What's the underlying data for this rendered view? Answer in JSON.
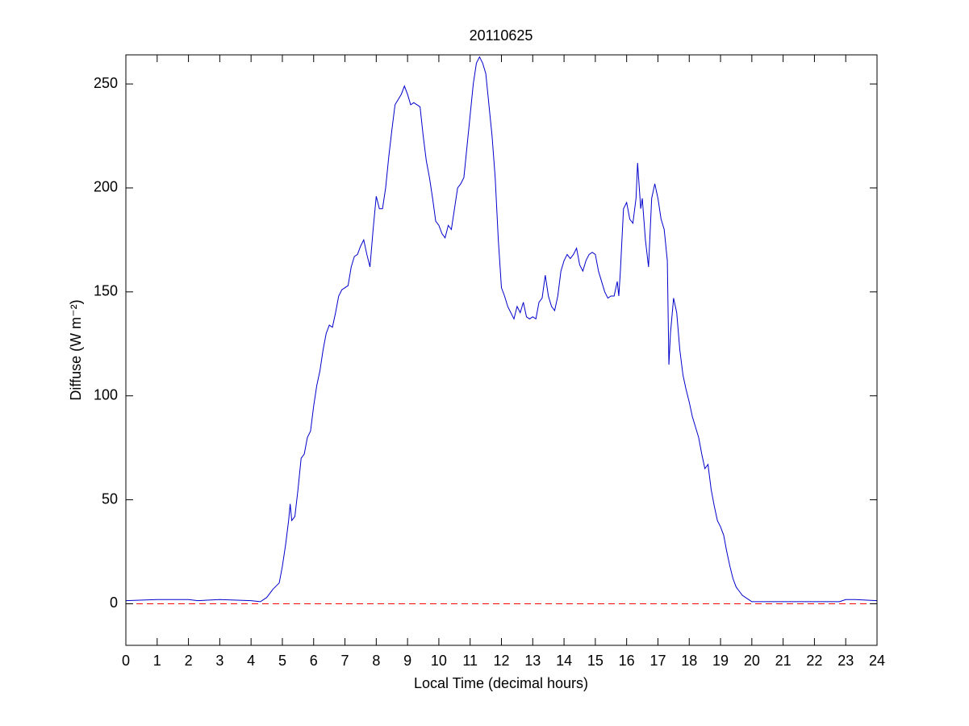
{
  "chart_data": {
    "type": "line",
    "title": "20110625",
    "xlabel": "Local Time (decimal hours)",
    "ylabel": "Diffuse (W m⁻²)",
    "x": [
      0,
      1,
      2,
      2.3,
      3,
      4,
      4.3,
      4.5,
      4.7,
      4.9,
      5.0,
      5.1,
      5.2,
      5.25,
      5.3,
      5.4,
      5.5,
      5.6,
      5.7,
      5.8,
      5.9,
      6.0,
      6.1,
      6.2,
      6.3,
      6.4,
      6.5,
      6.6,
      6.7,
      6.8,
      6.9,
      7.0,
      7.1,
      7.2,
      7.3,
      7.4,
      7.5,
      7.6,
      7.7,
      7.8,
      7.9,
      8.0,
      8.1,
      8.2,
      8.3,
      8.4,
      8.5,
      8.6,
      8.8,
      8.9,
      9.0,
      9.1,
      9.2,
      9.4,
      9.5,
      9.6,
      9.7,
      9.8,
      9.9,
      10.0,
      10.1,
      10.2,
      10.3,
      10.4,
      10.5,
      10.6,
      10.7,
      10.8,
      10.9,
      11.0,
      11.1,
      11.2,
      11.3,
      11.4,
      11.5,
      11.6,
      11.7,
      11.8,
      11.9,
      12.0,
      12.1,
      12.2,
      12.3,
      12.4,
      12.5,
      12.6,
      12.7,
      12.8,
      12.9,
      13.0,
      13.1,
      13.2,
      13.3,
      13.4,
      13.5,
      13.6,
      13.7,
      13.8,
      13.9,
      14.0,
      14.1,
      14.2,
      14.3,
      14.4,
      14.5,
      14.6,
      14.7,
      14.8,
      14.9,
      15.0,
      15.1,
      15.2,
      15.3,
      15.4,
      15.5,
      15.6,
      15.7,
      15.75,
      15.8,
      15.9,
      16.0,
      16.1,
      16.2,
      16.3,
      16.35,
      16.45,
      16.5,
      16.6,
      16.7,
      16.8,
      16.9,
      17.0,
      17.1,
      17.2,
      17.3,
      17.35,
      17.4,
      17.5,
      17.6,
      17.7,
      17.8,
      17.9,
      18.0,
      18.1,
      18.2,
      18.3,
      18.4,
      18.5,
      18.6,
      18.7,
      18.8,
      18.9,
      19.0,
      19.1,
      19.2,
      19.3,
      19.4,
      19.5,
      19.6,
      19.7,
      19.9,
      20.0,
      20.5,
      21,
      22,
      22.5,
      22.8,
      23.0,
      23.3,
      24
    ],
    "series": [
      {
        "name": "Diffuse",
        "color": "#0000cc",
        "values": [
          1.5,
          2,
          2,
          1.5,
          2,
          1.5,
          1,
          3,
          7,
          10,
          18,
          28,
          40,
          48,
          40,
          42,
          55,
          70,
          72,
          80,
          83,
          95,
          105,
          112,
          122,
          130,
          134,
          133,
          140,
          148,
          151,
          152,
          153,
          162,
          167,
          168,
          172,
          175,
          168,
          162,
          180,
          196,
          190,
          190,
          200,
          215,
          228,
          240,
          245,
          249,
          245,
          240,
          241,
          239,
          225,
          213,
          205,
          195,
          184,
          182,
          178,
          176,
          182,
          180,
          190,
          200,
          202,
          205,
          220,
          235,
          250,
          260,
          263,
          260,
          255,
          240,
          225,
          205,
          175,
          152,
          148,
          143,
          140,
          137,
          143,
          140,
          145,
          138,
          137,
          138,
          137,
          145,
          147,
          158,
          148,
          143,
          141,
          148,
          160,
          165,
          168,
          166,
          168,
          171,
          163,
          160,
          165,
          168,
          169,
          168,
          160,
          155,
          150,
          147,
          148,
          148,
          155,
          148,
          160,
          190,
          193,
          185,
          183,
          195,
          212,
          190,
          195,
          175,
          162,
          195,
          202,
          195,
          185,
          180,
          165,
          115,
          130,
          147,
          140,
          122,
          110,
          103,
          97,
          90,
          85,
          80,
          72,
          65,
          67,
          55,
          47,
          40,
          37,
          33,
          25,
          18,
          12,
          8,
          6,
          4,
          2,
          1,
          1,
          1,
          1,
          1,
          1,
          2,
          2,
          1.5
        ]
      }
    ],
    "reference_lines": [
      {
        "value": 0,
        "color": "#ff0000",
        "style": "dashed"
      }
    ],
    "xlim": [
      0,
      24
    ],
    "xticks": [
      0,
      1,
      2,
      3,
      4,
      5,
      6,
      7,
      8,
      9,
      10,
      11,
      12,
      13,
      14,
      15,
      16,
      17,
      18,
      19,
      20,
      21,
      22,
      23,
      24
    ],
    "ylim": [
      -20,
      264
    ],
    "yticks": [
      0,
      50,
      100,
      150,
      200,
      250
    ],
    "grid": false
  }
}
